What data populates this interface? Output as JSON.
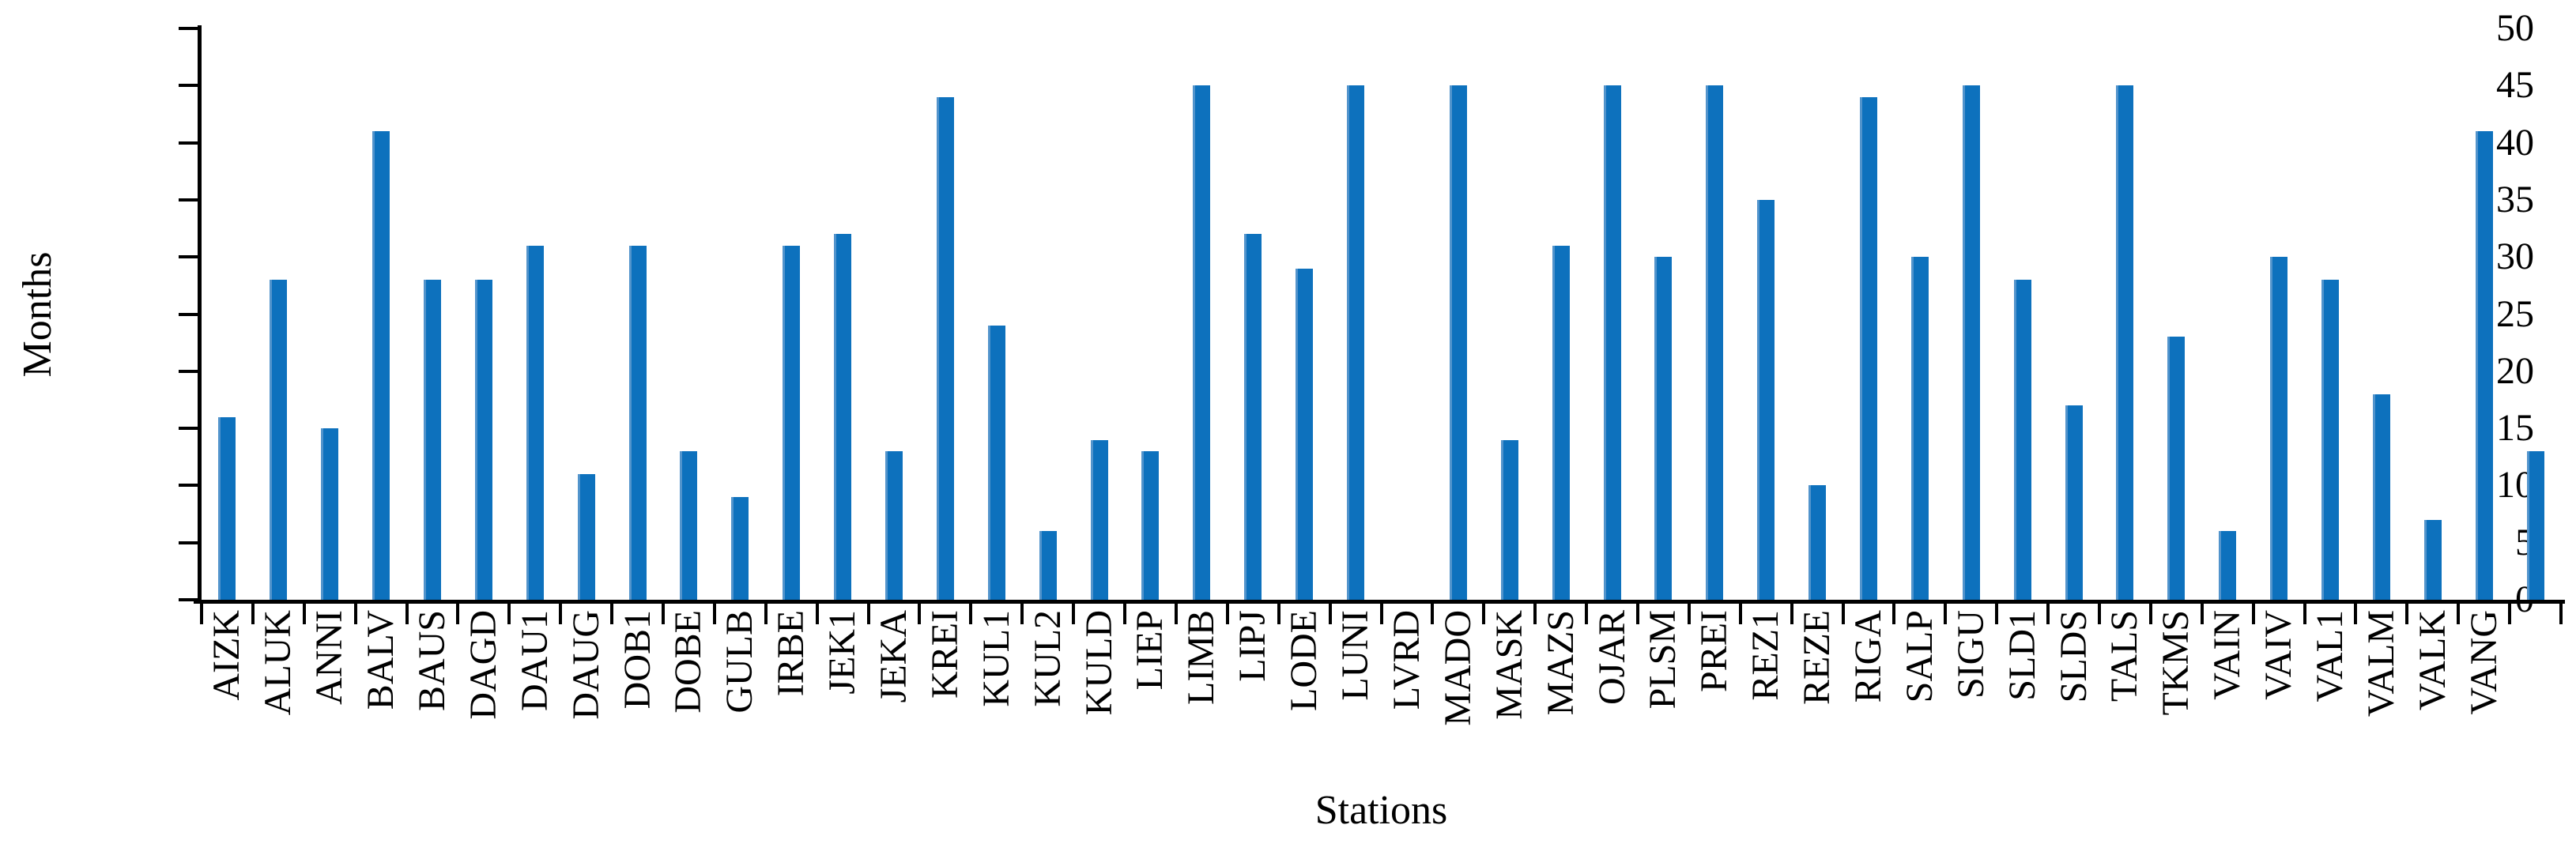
{
  "chart_data": {
    "type": "bar",
    "title": "",
    "xlabel": "Stations",
    "ylabel": "Months",
    "ylim": [
      0,
      50
    ],
    "yticks": [
      0,
      5,
      10,
      15,
      20,
      25,
      30,
      35,
      40,
      45,
      50
    ],
    "grid": false,
    "legend": "none",
    "bar_color": "#0d71bd",
    "bar_edge_color": "#5294cc",
    "axis_color": "#000000",
    "categories": [
      "AIZK",
      "ALUK",
      "ANNI",
      "BALV",
      "BAUS",
      "DAGD",
      "DAU1",
      "DAUG",
      "DOB1",
      "DOBE",
      "GULB",
      "IRBE",
      "JEK1",
      "JEKA",
      "KREI",
      "KUL1",
      "KUL2",
      "KULD",
      "LIEP",
      "LIMB",
      "LIPJ",
      "LODE",
      "LUNI",
      "LVRD",
      "MADO",
      "MASK",
      "MAZS",
      "OJAR",
      "PLSM",
      "PREI",
      "REZ1",
      "REZE",
      "RIGA",
      "SALP",
      "SIGU",
      "SLD1",
      "SLDS",
      "TALS",
      "TKMS",
      "VAIN",
      "VAIV",
      "VAL1",
      "VALM",
      "VALK",
      "VANG",
      ""
    ],
    "values": [
      16,
      28,
      15,
      41,
      28,
      28,
      31,
      11,
      31,
      13,
      9,
      31,
      32,
      13,
      44,
      24,
      6,
      14,
      13,
      45,
      32,
      29,
      45,
      0,
      45,
      14,
      31,
      45,
      30,
      45,
      35,
      10,
      44,
      30,
      45,
      28,
      17,
      45,
      23,
      6,
      30,
      28,
      18,
      7,
      41,
      13
    ]
  }
}
